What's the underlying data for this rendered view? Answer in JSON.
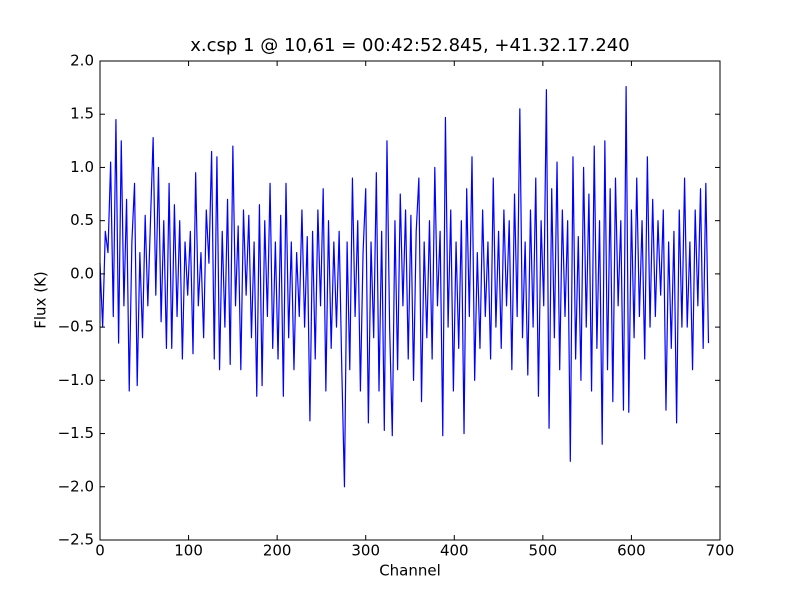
{
  "chart_data": {
    "type": "line",
    "title": "x.csp 1 @ 10,61 = 00:42:52.845, +41.32.17.240",
    "x_label": "Channel",
    "y_label": "Flux (K)",
    "xlim": [
      0,
      700
    ],
    "ylim": [
      -2.5,
      2.0
    ],
    "xticks": [
      0,
      100,
      200,
      300,
      400,
      500,
      600,
      700
    ],
    "yticks": [
      {
        "value": -2.5,
        "label": "−2.5"
      },
      {
        "value": -2,
        "label": "−2.0"
      },
      {
        "value": -1.5,
        "label": "−1.5"
      },
      {
        "value": -1,
        "label": "−1.0"
      },
      {
        "value": -0.5,
        "label": "−0.5"
      },
      {
        "value": 0,
        "label": "0.0"
      },
      0.5,
      {
        "value": 1,
        "label": "1.0"
      },
      1.5,
      {
        "value": 2,
        "label": "2.0"
      }
    ],
    "grid": false,
    "x": [
      0,
      3,
      6,
      9,
      12,
      15,
      18,
      21,
      24,
      27,
      30,
      33,
      36,
      39,
      42,
      45,
      48,
      51,
      54,
      57,
      60,
      63,
      66,
      69,
      72,
      75,
      78,
      81,
      84,
      87,
      90,
      93,
      96,
      99,
      102,
      105,
      108,
      111,
      114,
      117,
      120,
      123,
      126,
      129,
      132,
      135,
      138,
      141,
      144,
      147,
      150,
      153,
      156,
      159,
      162,
      165,
      168,
      171,
      174,
      177,
      180,
      183,
      186,
      189,
      192,
      195,
      198,
      201,
      204,
      207,
      210,
      213,
      216,
      219,
      222,
      225,
      228,
      231,
      234,
      237,
      240,
      243,
      246,
      249,
      252,
      255,
      258,
      261,
      264,
      267,
      270,
      273,
      276,
      279,
      282,
      285,
      288,
      291,
      294,
      297,
      300,
      303,
      306,
      309,
      312,
      315,
      318,
      321,
      324,
      327,
      330,
      333,
      336,
      339,
      342,
      345,
      348,
      351,
      354,
      357,
      360,
      363,
      366,
      369,
      372,
      375,
      378,
      381,
      384,
      387,
      390,
      393,
      396,
      399,
      402,
      405,
      408,
      411,
      414,
      417,
      420,
      423,
      426,
      429,
      432,
      435,
      438,
      441,
      444,
      447,
      450,
      453,
      456,
      459,
      462,
      465,
      468,
      471,
      474,
      477,
      480,
      483,
      486,
      489,
      492,
      495,
      498,
      501,
      504,
      507,
      510,
      513,
      516,
      519,
      522,
      525,
      528,
      531,
      534,
      537,
      540,
      543,
      546,
      549,
      552,
      555,
      558,
      561,
      564,
      567,
      570,
      573,
      576,
      579,
      582,
      585,
      588,
      591,
      594,
      597,
      600,
      603,
      606,
      609,
      612,
      615,
      618,
      621,
      624,
      627,
      630,
      633,
      636,
      639,
      642,
      645,
      648,
      651,
      654,
      657,
      660,
      663,
      666,
      669,
      672,
      675,
      678,
      681,
      684,
      687
    ],
    "series": [
      {
        "name": "flux",
        "color": "#0000ff",
        "values": [
          0.1,
          -0.5,
          0.4,
          0.2,
          1.05,
          -0.4,
          1.45,
          -0.65,
          1.25,
          -0.3,
          0.7,
          -1.1,
          0.3,
          0.85,
          -1.05,
          0.2,
          -0.6,
          0.55,
          -0.3,
          0.5,
          1.28,
          -0.2,
          1.0,
          -0.45,
          0.5,
          -0.7,
          0.85,
          -0.7,
          0.65,
          -0.4,
          0.5,
          -0.8,
          0.3,
          -0.2,
          0.4,
          -0.75,
          0.95,
          -0.3,
          0.2,
          -0.6,
          0.6,
          0.1,
          1.15,
          -0.8,
          1.1,
          -0.9,
          0.4,
          -0.5,
          0.7,
          -0.85,
          1.2,
          -0.3,
          0.45,
          -0.9,
          0.6,
          -0.2,
          0.55,
          -0.6,
          0.3,
          -1.15,
          0.65,
          -1.05,
          0.5,
          -0.4,
          0.85,
          -0.7,
          0.3,
          -0.8,
          0.55,
          -1.15,
          0.85,
          -0.6,
          0.3,
          -0.9,
          0.2,
          -0.4,
          0.6,
          -0.5,
          0.35,
          -1.38,
          0.4,
          -0.8,
          0.6,
          -0.3,
          0.8,
          -1.1,
          0.5,
          -0.7,
          0.3,
          -0.5,
          0.4,
          -0.9,
          -2.0,
          0.3,
          -0.9,
          0.9,
          -0.4,
          0.5,
          -1.1,
          0.2,
          0.8,
          -1.4,
          0.3,
          -0.6,
          0.95,
          -1.1,
          0.4,
          -1.47,
          1.25,
          -0.5,
          -1.52,
          0.5,
          -0.9,
          0.75,
          -0.3,
          0.6,
          -0.8,
          0.55,
          -1.0,
          0.4,
          0.9,
          -1.2,
          0.3,
          -0.6,
          0.5,
          -0.8,
          1.0,
          -0.3,
          0.4,
          -1.52,
          1.47,
          -0.5,
          0.6,
          -1.1,
          0.3,
          -0.7,
          0.5,
          -1.5,
          0.8,
          -0.4,
          1.1,
          -1.0,
          0.2,
          -0.7,
          0.6,
          -0.4,
          0.3,
          -0.8,
          0.9,
          -0.5,
          0.4,
          -0.7,
          0.6,
          -0.3,
          0.5,
          -0.9,
          0.75,
          -0.4,
          1.55,
          -0.6,
          0.3,
          -0.95,
          0.6,
          -0.5,
          0.9,
          -1.15,
          0.5,
          -0.3,
          1.73,
          -1.45,
          0.8,
          -0.6,
          1.05,
          -0.9,
          0.6,
          -0.4,
          0.5,
          -1.76,
          1.1,
          -0.8,
          0.35,
          -1.0,
          1.0,
          -0.5,
          0.75,
          -1.1,
          1.2,
          -0.7,
          0.5,
          -1.6,
          1.25,
          -0.9,
          0.8,
          -1.2,
          0.9,
          -0.3,
          0.5,
          -1.28,
          1.76,
          -1.3,
          0.6,
          -0.6,
          0.9,
          -0.4,
          0.5,
          -0.8,
          1.1,
          -0.5,
          0.7,
          -0.4,
          0.5,
          -0.2,
          0.6,
          -1.28,
          0.3,
          -0.7,
          0.4,
          -1.4,
          0.6,
          -0.5,
          0.9,
          -0.5,
          0.3,
          -0.9,
          0.6,
          -0.3,
          0.8,
          -0.7,
          0.85,
          -0.65
        ]
      }
    ]
  }
}
